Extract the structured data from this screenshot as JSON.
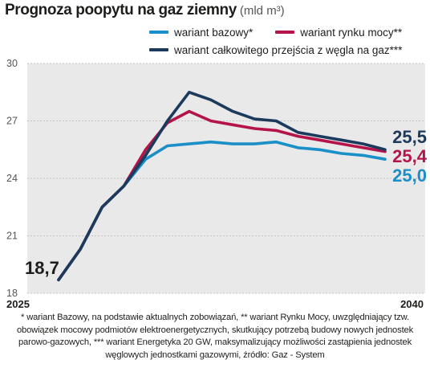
{
  "header": {
    "title": "Prognoza poopytu na gaz ziemny",
    "unit": "(mld m³)"
  },
  "legend": [
    {
      "label": "wariant bazowy*",
      "color": "#1a8fc8"
    },
    {
      "label": "wariant rynku mocy**",
      "color": "#b5144a"
    },
    {
      "label": "wariant całkowitego przejścia z węgla na gaz***",
      "color": "#1b3a5c"
    }
  ],
  "chart_data": {
    "type": "line",
    "x": [
      2025,
      2026,
      2027,
      2028,
      2029,
      2030,
      2031,
      2032,
      2033,
      2034,
      2035,
      2036,
      2037,
      2038,
      2039,
      2040
    ],
    "xtick_labels": [
      "2025",
      "2040"
    ],
    "yticks": [
      18,
      21,
      24,
      27,
      30
    ],
    "ylim": [
      18,
      30
    ],
    "xlim": [
      2024.5,
      2040
    ],
    "grid": "horizontal",
    "series": [
      {
        "name": "wariant bazowy*",
        "color": "#1a8fc8",
        "values": [
          18.7,
          20.3,
          22.5,
          23.6,
          25.0,
          25.7,
          25.8,
          25.9,
          25.8,
          25.8,
          25.9,
          25.6,
          25.5,
          25.3,
          25.2,
          25.0
        ]
      },
      {
        "name": "wariant rynku mocy**",
        "color": "#b5144a",
        "values": [
          18.7,
          20.3,
          22.5,
          23.6,
          25.5,
          26.9,
          27.5,
          27.0,
          26.8,
          26.6,
          26.5,
          26.2,
          26.0,
          25.8,
          25.6,
          25.4
        ]
      },
      {
        "name": "wariant całkowitego przejścia z węgla na gaz***",
        "color": "#1b3a5c",
        "values": [
          18.7,
          20.3,
          22.5,
          23.6,
          25.2,
          27.0,
          28.5,
          28.1,
          27.5,
          27.1,
          27.0,
          26.4,
          26.2,
          26.0,
          25.8,
          25.5
        ]
      }
    ],
    "annotations": [
      {
        "text": "18,7",
        "color": "#1d1d1b"
      },
      {
        "text": "25,5",
        "color": "#1b3a5c"
      },
      {
        "text": "25,4",
        "color": "#b5144a"
      },
      {
        "text": "25,0",
        "color": "#1a8fc8"
      }
    ]
  },
  "footnote": "* wariant Bazowy, na podstawie aktualnych zobowiązań, ** wariant Rynku Mocy, uwzględniający tzw. obowiązek mocowy podmiotów elektroenergetycznych, skutkujący potrzebą budowy nowych jednostek parowo-gazowych, *** wariant Energetyka 20 GW, maksymalizujący możliwości zastąpienia jednostek węglowych jednostkami gazowymi, źródło: Gaz - System"
}
